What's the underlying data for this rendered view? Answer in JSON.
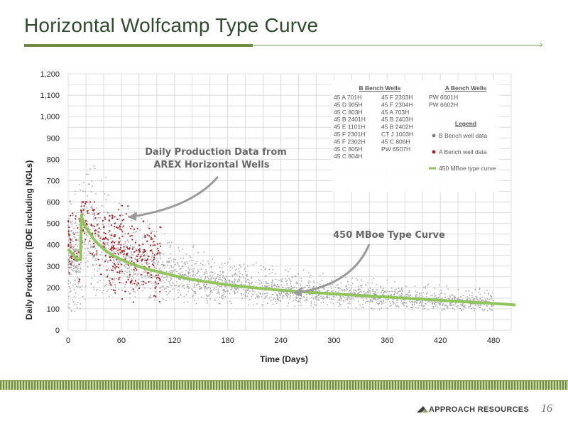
{
  "page": {
    "title": "Horizontal Wolfcamp Type Curve",
    "brand": "APPROACH RESOURCES",
    "page_number": "16"
  },
  "chart_data": {
    "type": "scatter",
    "xlabel": "Time (Days)",
    "ylabel": "Daily Production (BOE including NGLs)",
    "xlim": [
      0,
      500
    ],
    "ylim": [
      0,
      1200
    ],
    "x_ticks": [
      "0",
      "60",
      "120",
      "180",
      "240",
      "300",
      "360",
      "420",
      "480"
    ],
    "y_ticks": [
      "0",
      "100",
      "200",
      "300",
      "400",
      "500",
      "600",
      "700",
      "800",
      "900",
      "1,000",
      "1,100",
      "1,200"
    ],
    "grid": true,
    "legend_placement": "top-right",
    "well_lists": {
      "b_bench_heading": "B Bench Wells",
      "b_bench_col1": [
        "45 A 701H",
        "45 D 905H",
        "45 C 803H",
        "45 B 2401H",
        "45 E 1101H",
        "45 F 2301H",
        "45 F 2302H",
        "45 C 805H",
        "45 C 804H"
      ],
      "b_bench_col2": [
        "45 F 2303H",
        "45 F 2304H",
        "45 A 703H",
        "45 B 2403H",
        "45 B 2402H",
        "CT J 1003H",
        "45 C 806H",
        "PW 6507H"
      ],
      "a_bench_heading": "A Bench Wells",
      "a_bench": [
        "PW 6601H",
        "PW 6602H"
      ]
    },
    "legend": {
      "heading": "Legend",
      "entries": [
        "B Bench well data",
        "A Bench well data",
        "450 MBoe type curve"
      ]
    },
    "colors": {
      "b_bench": "#a9a9a9",
      "a_bench": "#b01f24",
      "type_curve": "#8fc55a"
    },
    "annotations": [
      {
        "text_lines": [
          "Daily Production Data from",
          "AREX Horizontal Wells"
        ]
      },
      {
        "text_lines": [
          "450 MBoe Type Curve"
        ]
      }
    ],
    "series": [
      {
        "name": "450 MBoe type curve",
        "x": [
          0,
          5,
          10,
          14,
          15,
          17,
          20,
          25,
          30,
          40,
          50,
          60,
          75,
          90,
          110,
          130,
          150,
          180,
          210,
          240,
          270,
          300,
          330,
          360,
          390,
          420,
          450,
          480,
          505
        ],
        "y": [
          380,
          355,
          330,
          330,
          540,
          500,
          480,
          450,
          420,
          380,
          350,
          330,
          305,
          285,
          265,
          245,
          230,
          212,
          198,
          187,
          178,
          170,
          162,
          155,
          147,
          140,
          132,
          125,
          118
        ]
      },
      {
        "name": "B Bench well data",
        "description_of_cloud": "dense grey daily-production points scattering around the type curve, widest spread in first 120 days",
        "spread_by_day": [
          {
            "x": 0,
            "low": 50,
            "high": 600
          },
          {
            "x": 30,
            "low": 150,
            "high": 800
          },
          {
            "x": 60,
            "low": 150,
            "high": 600
          },
          {
            "x": 120,
            "low": 130,
            "high": 430
          },
          {
            "x": 180,
            "low": 120,
            "high": 340
          },
          {
            "x": 300,
            "low": 100,
            "high": 260
          },
          {
            "x": 480,
            "low": 90,
            "high": 190
          }
        ]
      },
      {
        "name": "A Bench well data",
        "spread_by_day": [
          {
            "x": 0,
            "low": 50,
            "high": 400
          },
          {
            "x": 30,
            "low": 150,
            "high": 550
          },
          {
            "x": 60,
            "low": 120,
            "high": 600
          },
          {
            "x": 105,
            "low": 80,
            "high": 480
          }
        ]
      }
    ]
  }
}
